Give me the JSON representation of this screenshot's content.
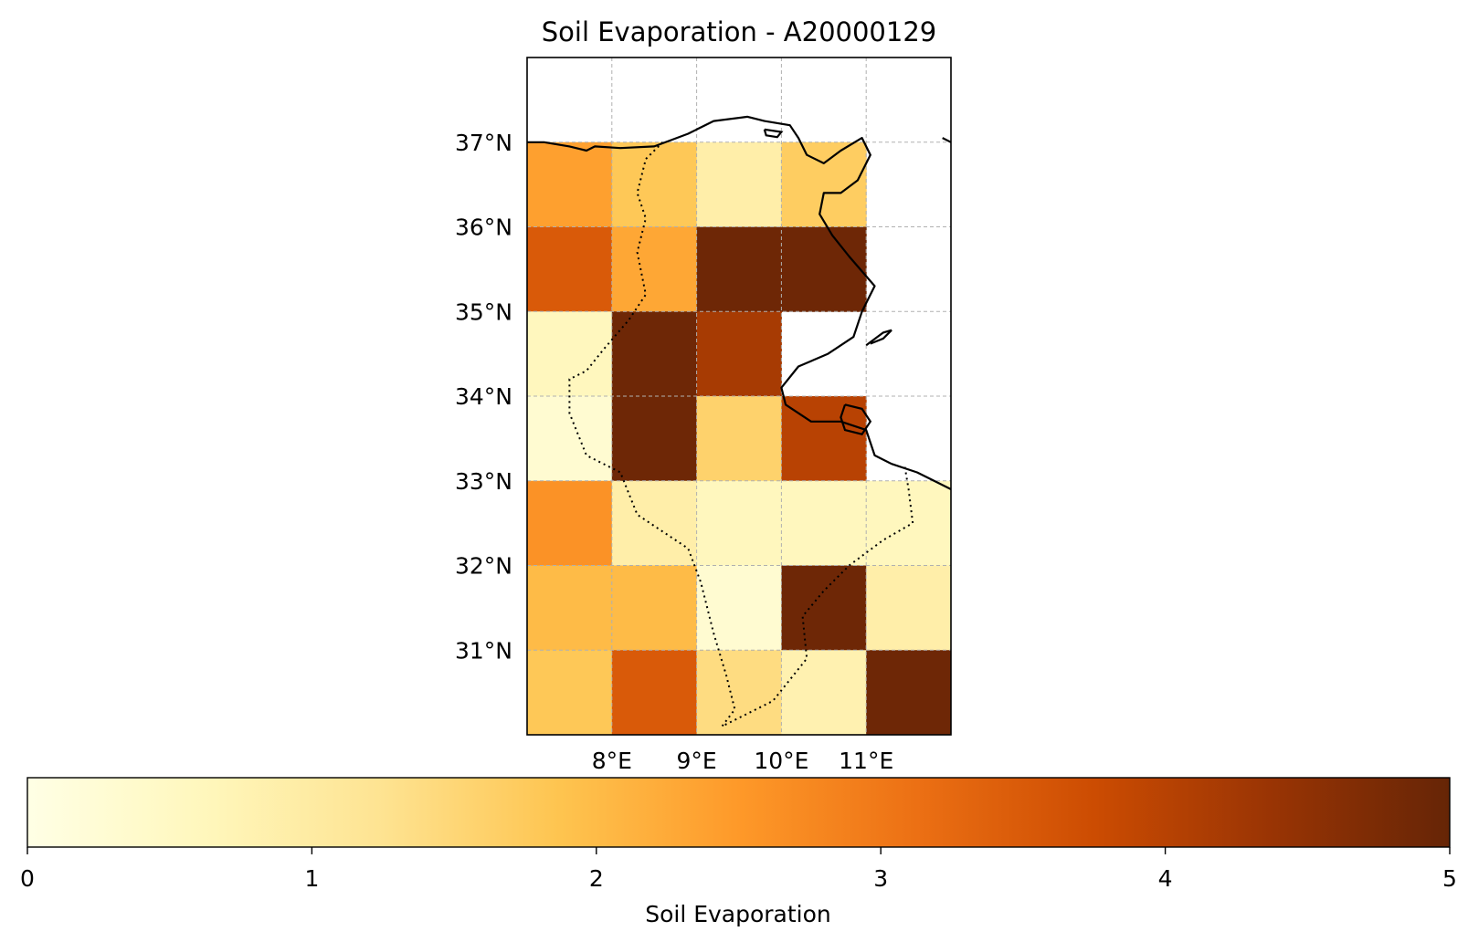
{
  "chart_data": {
    "type": "heatmap",
    "title": "Soil Evaporation - A20000129",
    "colorbar_label": "Soil Evaporation",
    "colormap": "YlOrBr",
    "vmin": 0,
    "vmax": 5,
    "colorbar_ticks": [
      "0",
      "1",
      "2",
      "3",
      "4",
      "5"
    ],
    "x_tick_labels": [
      "8°E",
      "9°E",
      "10°E",
      "11°E"
    ],
    "y_tick_labels": [
      "37°N",
      "36°N",
      "35°N",
      "34°N",
      "33°N",
      "32°N",
      "31°N"
    ],
    "x_ticks": [
      8,
      9,
      10,
      11
    ],
    "y_ticks": [
      37,
      36,
      35,
      34,
      33,
      32,
      31
    ],
    "lon_range": [
      7,
      12
    ],
    "lat_range": [
      30,
      38
    ],
    "grid": true,
    "cells": [
      {
        "lon": 7,
        "lat": 36,
        "value": 2.4
      },
      {
        "lon": 8,
        "lat": 36,
        "value": 1.8
      },
      {
        "lon": 9,
        "lat": 36,
        "value": 0.9
      },
      {
        "lon": 10,
        "lat": 36,
        "value": 1.7
      },
      {
        "lon": 7,
        "lat": 35,
        "value": 3.5
      },
      {
        "lon": 8,
        "lat": 35,
        "value": 2.3
      },
      {
        "lon": 9,
        "lat": 35,
        "value": 4.9
      },
      {
        "lon": 10,
        "lat": 35,
        "value": 4.9
      },
      {
        "lon": 7,
        "lat": 34,
        "value": 0.6
      },
      {
        "lon": 8,
        "lat": 34,
        "value": 4.9
      },
      {
        "lon": 9,
        "lat": 34,
        "value": 4.2
      },
      {
        "lon": 7,
        "lat": 33,
        "value": 0.3
      },
      {
        "lon": 8,
        "lat": 33,
        "value": 4.9
      },
      {
        "lon": 9,
        "lat": 33,
        "value": 1.6
      },
      {
        "lon": 10,
        "lat": 33,
        "value": 4.0
      },
      {
        "lon": 7,
        "lat": 32,
        "value": 2.6
      },
      {
        "lon": 8,
        "lat": 32,
        "value": 0.9
      },
      {
        "lon": 9,
        "lat": 32,
        "value": 0.6
      },
      {
        "lon": 10,
        "lat": 32,
        "value": 0.6
      },
      {
        "lon": 11,
        "lat": 32,
        "value": 0.6
      },
      {
        "lon": 7,
        "lat": 31,
        "value": 2.0
      },
      {
        "lon": 8,
        "lat": 31,
        "value": 2.0
      },
      {
        "lon": 9,
        "lat": 31,
        "value": 0.3
      },
      {
        "lon": 10,
        "lat": 31,
        "value": 4.9
      },
      {
        "lon": 11,
        "lat": 31,
        "value": 0.9
      },
      {
        "lon": 7,
        "lat": 30,
        "value": 1.8
      },
      {
        "lon": 8,
        "lat": 30,
        "value": 3.5
      },
      {
        "lon": 9,
        "lat": 30,
        "value": 1.4
      },
      {
        "lon": 10,
        "lat": 30,
        "value": 0.8
      },
      {
        "lon": 11,
        "lat": 30,
        "value": 4.9
      }
    ],
    "coastline": [
      [
        7,
        37
      ],
      [
        7.2,
        37.0
      ],
      [
        7.5,
        36.95
      ],
      [
        7.7,
        36.9
      ],
      [
        7.8,
        36.95
      ],
      [
        8.1,
        36.93
      ],
      [
        8.5,
        36.95
      ],
      [
        8.9,
        37.1
      ],
      [
        9.2,
        37.25
      ],
      [
        9.6,
        37.3
      ],
      [
        9.8,
        37.25
      ],
      [
        10.1,
        37.2
      ],
      [
        10.2,
        37.05
      ],
      [
        10.3,
        36.85
      ],
      [
        10.5,
        36.75
      ],
      [
        10.7,
        36.9
      ],
      [
        10.95,
        37.05
      ],
      [
        11.05,
        36.85
      ],
      [
        10.9,
        36.55
      ],
      [
        10.7,
        36.4
      ],
      [
        10.5,
        36.4
      ],
      [
        10.45,
        36.15
      ],
      [
        10.6,
        35.9
      ],
      [
        10.8,
        35.65
      ],
      [
        11.1,
        35.3
      ],
      [
        10.95,
        35.0
      ],
      [
        10.85,
        34.7
      ],
      [
        10.55,
        34.5
      ],
      [
        10.2,
        34.35
      ],
      [
        10.0,
        34.1
      ],
      [
        10.05,
        33.9
      ],
      [
        10.35,
        33.7
      ],
      [
        10.7,
        33.7
      ],
      [
        11.0,
        33.6
      ],
      [
        11.1,
        33.3
      ],
      [
        11.3,
        33.2
      ],
      [
        11.6,
        33.1
      ],
      [
        12,
        32.9
      ]
    ],
    "island_djerba": [
      [
        10.75,
        33.9
      ],
      [
        10.95,
        33.85
      ],
      [
        11.05,
        33.7
      ],
      [
        10.95,
        33.55
      ],
      [
        10.75,
        33.6
      ],
      [
        10.7,
        33.75
      ],
      [
        10.75,
        33.9
      ]
    ],
    "island_kerkennah": [
      [
        11.0,
        34.6
      ],
      [
        11.2,
        34.75
      ],
      [
        11.3,
        34.78
      ],
      [
        11.2,
        34.68
      ],
      [
        11.05,
        34.62
      ]
    ],
    "island_zembra": [
      [
        9.8,
        37.15
      ],
      [
        10.0,
        37.12
      ],
      [
        9.95,
        37.06
      ],
      [
        9.82,
        37.08
      ],
      [
        9.8,
        37.15
      ]
    ],
    "border": [
      [
        8.6,
        37.0
      ],
      [
        8.4,
        36.8
      ],
      [
        8.3,
        36.4
      ],
      [
        8.4,
        36.1
      ],
      [
        8.3,
        35.7
      ],
      [
        8.4,
        35.2
      ],
      [
        8.2,
        34.9
      ],
      [
        7.9,
        34.55
      ],
      [
        7.7,
        34.3
      ],
      [
        7.5,
        34.2
      ],
      [
        7.5,
        33.8
      ],
      [
        7.7,
        33.3
      ],
      [
        8.1,
        33.1
      ],
      [
        8.3,
        32.6
      ],
      [
        8.6,
        32.4
      ],
      [
        8.9,
        32.2
      ],
      [
        9.05,
        31.8
      ],
      [
        9.2,
        31.2
      ],
      [
        9.35,
        30.7
      ],
      [
        9.45,
        30.3
      ],
      [
        9.3,
        30.1
      ],
      [
        9.6,
        30.25
      ],
      [
        9.9,
        30.4
      ],
      [
        10.3,
        30.9
      ],
      [
        10.25,
        31.4
      ],
      [
        10.5,
        31.7
      ],
      [
        10.8,
        32.0
      ],
      [
        11.2,
        32.3
      ],
      [
        11.55,
        32.5
      ],
      [
        11.5,
        32.9
      ],
      [
        11.45,
        33.2
      ]
    ],
    "libya_coast": [
      [
        11.9,
        37.05
      ],
      [
        12,
        37.0
      ]
    ]
  }
}
